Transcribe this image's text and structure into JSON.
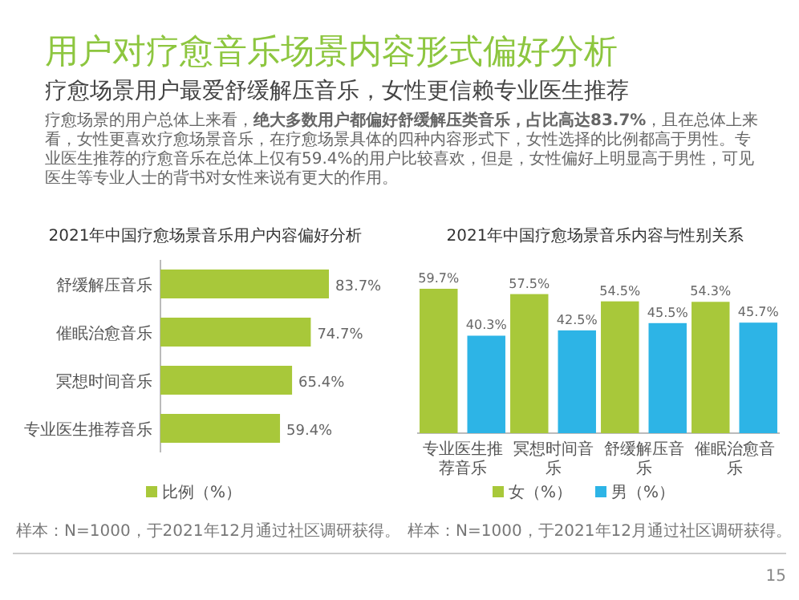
{
  "chart_data": [
    {
      "type": "bar",
      "orientation": "horizontal",
      "title": "2021年中国疗愈场景音乐用户内容偏好分析",
      "categories": [
        "舒缓解压音乐",
        "催眠治愈音乐",
        "冥想时间音乐",
        "专业医生推荐音乐"
      ],
      "series": [
        {
          "name": "比例（%）",
          "color": "#a8c83a",
          "values": [
            83.7,
            74.7,
            65.4,
            59.4
          ],
          "value_labels": [
            "83.7%",
            "74.7%",
            "65.4%",
            "59.4%"
          ]
        }
      ],
      "legend": "bottom",
      "annotations": [
        "用户对疗愈音乐场景内容形式偏好分析",
        "疗愈场景用户最爱舒缓解压音乐，女性更信赖专业医生推荐",
        "疗愈场景的用户总体上来看，**绝大多数用户都偏好舒缓解压类音乐，占比高达83.7%**，且在总体上来看，女性更喜欢疗愈场景音乐，在疗愈场景具体的四种内容形式下，女性选择的比例都高于男性。专业医生推荐的疗愈音乐在总体上仅有59.4%的用户比较喜欢，但是，女性偏好上明显高于男性，可见医生等专业人士的背书对女性来说有更大的作用。",
        "样本：N=1000，于2021年12月通过社区调研获得。"
      ]
    },
    {
      "type": "bar",
      "title": "2021年中国疗愈场景音乐内容与性别关系",
      "categories": [
        "专业医生推荐音乐",
        "冥想时间音乐",
        "舒缓解压音乐",
        "催眠治愈音乐"
      ],
      "series": [
        {
          "name": "女（%）",
          "color": "#a8c83a",
          "values": [
            59.7,
            57.5,
            54.5,
            54.3
          ],
          "value_labels": [
            "59.7%",
            "57.5%",
            "54.5%",
            "54.3%"
          ]
        },
        {
          "name": "男（%）",
          "color": "#2db4e6",
          "values": [
            40.3,
            42.5,
            45.5,
            45.7
          ],
          "value_labels": [
            "40.3%",
            "42.5%",
            "45.5%",
            "45.7%"
          ]
        }
      ],
      "legend": "bottom",
      "annotations": [
        "样本：N=1000，于2021年12月通过社区调研获得。",
        "15"
      ]
    }
  ]
}
